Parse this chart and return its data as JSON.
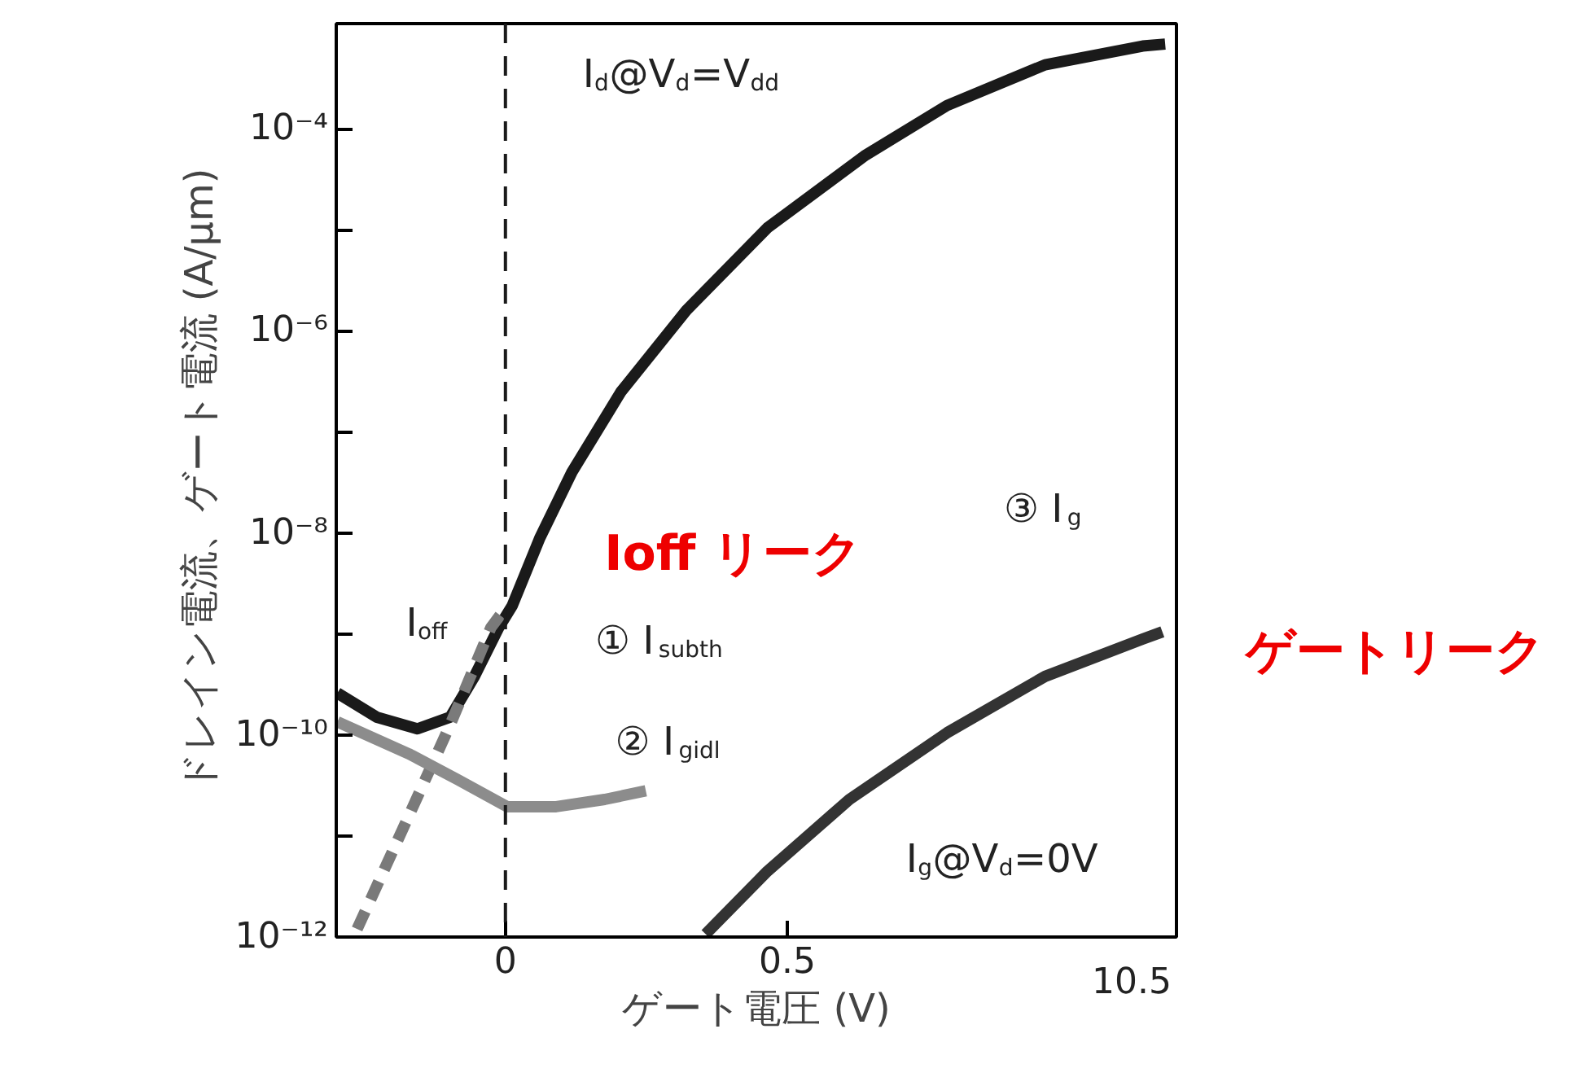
{
  "chart_data": {
    "type": "line",
    "xlabel": "ゲート電圧 (V)",
    "ylabel": "ドレイン電流、ゲート電流 (A/μm)",
    "log": true,
    "xlim": [
      -0.3,
      1.19
    ],
    "ylim": [
      1e-12,
      0.0011
    ],
    "xticks": [
      0,
      0.5
    ],
    "yticks": [
      {
        "value": 1e-12,
        "label": "10⁻¹²"
      },
      {
        "value": 1e-11,
        "label": null
      },
      {
        "value": 1e-10,
        "label": "10⁻¹⁰"
      },
      {
        "value": 1e-09,
        "label": null
      },
      {
        "value": 1e-08,
        "label": "10⁻⁸"
      },
      {
        "value": 1e-07,
        "label": null
      },
      {
        "value": 1e-06,
        "label": "10⁻⁶"
      },
      {
        "value": 1e-05,
        "label": null
      },
      {
        "value": 0.0001,
        "label": "10⁻⁴"
      }
    ],
    "grid": false,
    "series": [
      {
        "color": "#1a1a1a",
        "line_style": "solid",
        "x": [
          -0.298,
          -0.228,
          -0.156,
          -0.098,
          -0.055,
          -0.012,
          0.012,
          0.061,
          0.118,
          0.205,
          0.321,
          0.465,
          0.639,
          0.783,
          0.957,
          1.13,
          1.17
        ],
        "values": [
          2.6e-10,
          1.5e-10,
          1.15e-10,
          1.5e-10,
          3.8e-10,
          1.15e-09,
          1.9e-09,
          8.9e-09,
          4e-08,
          2.5e-07,
          1.6e-06,
          1.05e-05,
          5.5e-05,
          0.00017,
          0.00043,
          0.00066,
          0.00069
        ]
      },
      {
        "color": "#7a7a7a",
        "line_style": "dashed",
        "x": [
          -0.263,
          -0.171,
          -0.098,
          -0.026,
          0.0
        ],
        "values": [
          1.2e-12,
          1.6e-11,
          1.26e-10,
          1.15e-09,
          1.8e-09
        ]
      },
      {
        "color": "#8c8c8c",
        "line_style": "solid",
        "x": [
          -0.298,
          -0.171,
          -0.084,
          0.003,
          0.09,
          0.176,
          0.249
        ],
        "values": [
          1.35e-10,
          6.5e-11,
          3.6e-11,
          1.95e-11,
          1.95e-11,
          2.3e-11,
          2.8e-11
        ]
      },
      {
        "color": "#333333",
        "line_style": "solid",
        "x": [
          0.355,
          0.465,
          0.61,
          0.783,
          0.957,
          1.13,
          1.165
        ],
        "values": [
          1.07e-12,
          4.5e-12,
          2.3e-11,
          1.05e-10,
          3.8e-10,
          8.9e-10,
          1.05e-09
        ]
      }
    ],
    "ref_lines": [
      {
        "axis": "x",
        "value": 0,
        "label": null,
        "color": "#1a1a1a",
        "line_style": "dashed"
      }
    ],
    "annotations": [
      "I$_{d}$@V$_{d}$=V$_{dd}$",
      "I$_{off}$",
      "① I$_{subth}$",
      "② I$_{gidl}$",
      "③ I$_{g}$",
      "I$_{g}$@V$_{d}$=0V",
      "Ioff リーク",
      "ゲートリーク",
      "10.5"
    ]
  }
}
